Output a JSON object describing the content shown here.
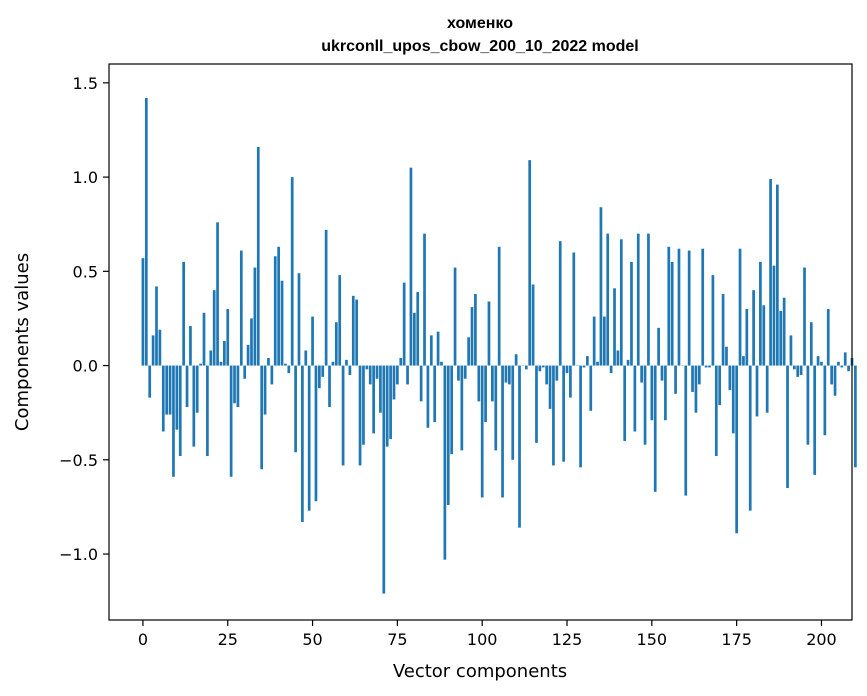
{
  "chart_data": {
    "type": "bar",
    "title_line1": "хоменко",
    "title_line2": "ukrconll_upos_cbow_200_10_2022 model",
    "xlabel": "Vector components",
    "ylabel": "Components values",
    "xlim": [
      -10,
      209
    ],
    "ylim": [
      -1.35,
      1.6
    ],
    "xticks": [
      0,
      25,
      50,
      75,
      100,
      125,
      150,
      175,
      200
    ],
    "xtick_labels": [
      "0",
      "25",
      "50",
      "75",
      "100",
      "125",
      "150",
      "175",
      "200"
    ],
    "yticks": [
      -1.0,
      -0.5,
      0.0,
      0.5,
      1.0,
      1.5
    ],
    "ytick_labels": [
      "−1.0",
      "−0.5",
      "0.0",
      "0.5",
      "1.0",
      "1.5"
    ],
    "bar_color": "#1f77b4",
    "values": [
      0.57,
      1.42,
      -0.17,
      0.16,
      0.42,
      0.19,
      -0.35,
      -0.26,
      -0.26,
      -0.59,
      -0.34,
      -0.48,
      0.55,
      -0.22,
      0.21,
      -0.43,
      -0.25,
      0.01,
      0.28,
      -0.48,
      0.08,
      0.4,
      0.76,
      0.02,
      0.13,
      0.3,
      -0.59,
      -0.2,
      -0.22,
      0.61,
      -0.07,
      0.11,
      0.25,
      0.52,
      1.16,
      -0.55,
      -0.26,
      0.04,
      -0.1,
      0.58,
      0.63,
      0.45,
      0.01,
      -0.04,
      1.0,
      -0.46,
      0.49,
      -0.83,
      0.08,
      -0.77,
      0.26,
      -0.72,
      -0.12,
      -0.06,
      0.72,
      -0.22,
      0.02,
      0.23,
      0.48,
      -0.53,
      0.03,
      -0.05,
      0.37,
      0.35,
      -0.53,
      -0.42,
      -0.02,
      -0.1,
      -0.36,
      -0.07,
      -0.25,
      -1.21,
      -0.43,
      -0.39,
      -0.18,
      -0.1,
      0.04,
      0.44,
      -0.1,
      1.05,
      0.28,
      0.39,
      -0.19,
      0.7,
      -0.33,
      0.16,
      -0.3,
      0.18,
      0.02,
      -1.03,
      -0.74,
      -0.47,
      0.52,
      -0.08,
      -0.45,
      -0.07,
      0.15,
      0.31,
      0.38,
      -0.19,
      -0.7,
      -0.3,
      0.34,
      -0.19,
      -0.45,
      0.63,
      -0.7,
      -0.09,
      -0.1,
      -0.5,
      0.06,
      -0.86,
      0.0,
      -0.02,
      1.09,
      0.43,
      -0.41,
      -0.03,
      -0.01,
      -0.1,
      -0.23,
      -0.53,
      -0.08,
      0.66,
      -0.51,
      -0.04,
      -0.17,
      0.6,
      0.0,
      -0.54,
      -0.01,
      0.05,
      -0.24,
      0.26,
      0.02,
      0.84,
      0.26,
      0.7,
      -0.04,
      0.41,
      0.08,
      0.67,
      -0.4,
      0.03,
      0.55,
      -0.35,
      0.7,
      -0.09,
      -0.42,
      0.7,
      -0.29,
      -0.67,
      0.2,
      -0.08,
      -0.29,
      0.63,
      0.55,
      -0.15,
      0.62,
      0.0,
      -0.69,
      0.61,
      -0.14,
      -0.25,
      -0.1,
      0.62,
      -0.01,
      -0.01,
      0.48,
      -0.48,
      -0.21,
      0.38,
      0.1,
      -0.13,
      -0.36,
      -0.89,
      0.62,
      0.05,
      0.3,
      -0.77,
      0.4,
      -0.27,
      0.55,
      0.32,
      -0.25,
      0.99,
      0.53,
      0.96,
      0.29,
      0.36,
      -0.65,
      0.16,
      -0.02,
      -0.06,
      -0.05,
      0.52,
      -0.42,
      0.23,
      -0.58,
      0.05,
      0.02,
      -0.37,
      0.3,
      -0.1,
      -0.16,
      0.02,
      -0.01,
      0.07,
      -0.03,
      0.04,
      -0.54
    ]
  }
}
